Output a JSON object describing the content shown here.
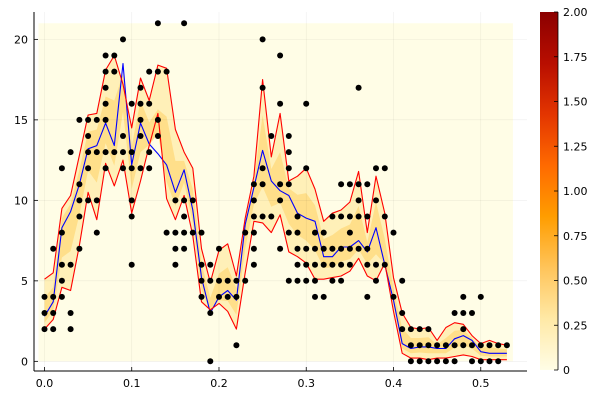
{
  "chart_data": {
    "type": "scatter",
    "title": "",
    "xlabel": "",
    "ylabel": "",
    "xlim": [
      -0.012,
      0.553
    ],
    "ylim": [
      -0.6,
      21.7
    ],
    "grid": true,
    "x_ticks": [
      0.0,
      0.1,
      0.2,
      0.3,
      0.4,
      0.5
    ],
    "x_tick_labels": [
      "0.0",
      "0.1",
      "0.2",
      "0.3",
      "0.4",
      "0.5"
    ],
    "y_ticks": [
      0,
      5,
      10,
      15,
      20
    ],
    "y_tick_labels": [
      "0",
      "5",
      "10",
      "15",
      "20"
    ],
    "colorbar": {
      "min": 0,
      "max": 2,
      "ticks": [
        "0",
        "0.25",
        "0.50",
        "0.75",
        "1.00",
        "1.25",
        "1.50",
        "1.75",
        "2.00"
      ],
      "colors": [
        "#fffde6",
        "#ffe9a6",
        "#ffc45a",
        "#ff9d00",
        "#ff6a00",
        "#e33500",
        "#b80e00",
        "#8b0000"
      ]
    },
    "band_colors": {
      "outer": "#fff0b8",
      "inner": "#ffdf8a",
      "background": "#fffde6"
    },
    "series": [
      {
        "kind": "points",
        "color": "#000000",
        "points": [
          [
            0.0,
            2
          ],
          [
            0.0,
            3
          ],
          [
            0.0,
            4
          ],
          [
            0.01,
            2
          ],
          [
            0.01,
            3
          ],
          [
            0.01,
            4
          ],
          [
            0.01,
            7
          ],
          [
            0.02,
            4
          ],
          [
            0.02,
            5
          ],
          [
            0.02,
            6
          ],
          [
            0.02,
            8
          ],
          [
            0.02,
            12
          ],
          [
            0.03,
            2
          ],
          [
            0.03,
            3
          ],
          [
            0.03,
            6
          ],
          [
            0.03,
            13
          ],
          [
            0.04,
            7
          ],
          [
            0.04,
            9
          ],
          [
            0.04,
            10
          ],
          [
            0.04,
            11
          ],
          [
            0.04,
            15
          ],
          [
            0.05,
            10
          ],
          [
            0.05,
            12
          ],
          [
            0.05,
            13
          ],
          [
            0.05,
            14
          ],
          [
            0.05,
            15
          ],
          [
            0.06,
            8
          ],
          [
            0.06,
            10
          ],
          [
            0.06,
            13
          ],
          [
            0.06,
            15
          ],
          [
            0.07,
            12
          ],
          [
            0.07,
            13
          ],
          [
            0.07,
            15
          ],
          [
            0.07,
            16
          ],
          [
            0.07,
            17
          ],
          [
            0.07,
            18
          ],
          [
            0.07,
            19
          ],
          [
            0.08,
            13
          ],
          [
            0.08,
            18
          ],
          [
            0.08,
            19
          ],
          [
            0.09,
            12
          ],
          [
            0.09,
            13
          ],
          [
            0.09,
            14
          ],
          [
            0.09,
            20
          ],
          [
            0.1,
            6
          ],
          [
            0.1,
            9
          ],
          [
            0.1,
            10
          ],
          [
            0.1,
            12
          ],
          [
            0.1,
            13
          ],
          [
            0.1,
            16
          ],
          [
            0.11,
            12
          ],
          [
            0.11,
            14
          ],
          [
            0.11,
            15
          ],
          [
            0.11,
            16
          ],
          [
            0.11,
            17
          ],
          [
            0.12,
            12
          ],
          [
            0.12,
            13
          ],
          [
            0.12,
            16
          ],
          [
            0.12,
            18
          ],
          [
            0.13,
            14
          ],
          [
            0.13,
            15
          ],
          [
            0.13,
            18
          ],
          [
            0.13,
            21
          ],
          [
            0.14,
            8
          ],
          [
            0.14,
            18
          ],
          [
            0.15,
            6
          ],
          [
            0.15,
            7
          ],
          [
            0.15,
            8
          ],
          [
            0.15,
            10
          ],
          [
            0.16,
            7
          ],
          [
            0.16,
            8
          ],
          [
            0.16,
            9
          ],
          [
            0.16,
            10
          ],
          [
            0.16,
            21
          ],
          [
            0.17,
            8
          ],
          [
            0.17,
            10
          ],
          [
            0.18,
            4
          ],
          [
            0.18,
            5
          ],
          [
            0.18,
            6
          ],
          [
            0.18,
            8
          ],
          [
            0.19,
            0
          ],
          [
            0.19,
            3
          ],
          [
            0.19,
            5
          ],
          [
            0.19,
            6
          ],
          [
            0.2,
            4
          ],
          [
            0.2,
            5
          ],
          [
            0.2,
            7
          ],
          [
            0.21,
            4
          ],
          [
            0.21,
            5
          ],
          [
            0.22,
            1
          ],
          [
            0.22,
            4
          ],
          [
            0.22,
            5
          ],
          [
            0.23,
            5
          ],
          [
            0.23,
            8
          ],
          [
            0.24,
            6
          ],
          [
            0.24,
            7
          ],
          [
            0.24,
            8
          ],
          [
            0.24,
            9
          ],
          [
            0.24,
            10
          ],
          [
            0.24,
            11
          ],
          [
            0.25,
            9
          ],
          [
            0.25,
            11
          ],
          [
            0.25,
            12
          ],
          [
            0.25,
            17
          ],
          [
            0.25,
            20
          ],
          [
            0.26,
            9
          ],
          [
            0.26,
            14
          ],
          [
            0.27,
            7
          ],
          [
            0.27,
            10
          ],
          [
            0.27,
            11
          ],
          [
            0.27,
            16
          ],
          [
            0.27,
            19
          ],
          [
            0.28,
            5
          ],
          [
            0.28,
            8
          ],
          [
            0.28,
            11
          ],
          [
            0.28,
            12
          ],
          [
            0.28,
            13
          ],
          [
            0.28,
            14
          ],
          [
            0.29,
            5
          ],
          [
            0.29,
            6
          ],
          [
            0.29,
            7
          ],
          [
            0.29,
            8
          ],
          [
            0.29,
            9
          ],
          [
            0.3,
            5
          ],
          [
            0.3,
            6
          ],
          [
            0.3,
            7
          ],
          [
            0.3,
            12
          ],
          [
            0.3,
            16
          ],
          [
            0.31,
            4
          ],
          [
            0.31,
            5
          ],
          [
            0.31,
            6
          ],
          [
            0.31,
            7
          ],
          [
            0.31,
            8
          ],
          [
            0.32,
            4
          ],
          [
            0.32,
            6
          ],
          [
            0.32,
            7
          ],
          [
            0.32,
            8
          ],
          [
            0.33,
            5
          ],
          [
            0.33,
            6
          ],
          [
            0.33,
            7
          ],
          [
            0.33,
            9
          ],
          [
            0.34,
            5
          ],
          [
            0.34,
            6
          ],
          [
            0.34,
            7
          ],
          [
            0.34,
            9
          ],
          [
            0.34,
            11
          ],
          [
            0.35,
            6
          ],
          [
            0.35,
            7
          ],
          [
            0.35,
            8
          ],
          [
            0.35,
            9
          ],
          [
            0.35,
            11
          ],
          [
            0.36,
            7
          ],
          [
            0.36,
            9
          ],
          [
            0.36,
            10
          ],
          [
            0.36,
            11
          ],
          [
            0.36,
            17
          ],
          [
            0.37,
            4
          ],
          [
            0.37,
            6
          ],
          [
            0.37,
            7
          ],
          [
            0.37,
            9
          ],
          [
            0.37,
            11
          ],
          [
            0.38,
            5
          ],
          [
            0.38,
            6
          ],
          [
            0.38,
            10
          ],
          [
            0.38,
            12
          ],
          [
            0.39,
            6
          ],
          [
            0.39,
            9
          ],
          [
            0.39,
            12
          ],
          [
            0.4,
            4
          ],
          [
            0.4,
            8
          ],
          [
            0.41,
            2
          ],
          [
            0.41,
            3
          ],
          [
            0.41,
            5
          ],
          [
            0.42,
            0
          ],
          [
            0.42,
            1
          ],
          [
            0.42,
            2
          ],
          [
            0.43,
            0
          ],
          [
            0.43,
            1
          ],
          [
            0.43,
            2
          ],
          [
            0.44,
            0
          ],
          [
            0.44,
            1
          ],
          [
            0.44,
            2
          ],
          [
            0.45,
            0
          ],
          [
            0.45,
            1
          ],
          [
            0.46,
            0
          ],
          [
            0.46,
            1
          ],
          [
            0.47,
            0
          ],
          [
            0.47,
            1
          ],
          [
            0.47,
            3
          ],
          [
            0.48,
            1
          ],
          [
            0.48,
            2
          ],
          [
            0.48,
            3
          ],
          [
            0.48,
            4
          ],
          [
            0.49,
            0
          ],
          [
            0.49,
            1
          ],
          [
            0.49,
            3
          ],
          [
            0.5,
            0
          ],
          [
            0.5,
            1
          ],
          [
            0.5,
            4
          ],
          [
            0.51,
            0
          ],
          [
            0.51,
            1
          ],
          [
            0.52,
            0
          ],
          [
            0.52,
            1
          ],
          [
            0.53,
            1
          ]
        ]
      },
      {
        "kind": "line",
        "color": "#0000ff",
        "x": [
          0.0,
          0.01,
          0.02,
          0.03,
          0.04,
          0.05,
          0.06,
          0.07,
          0.08,
          0.09,
          0.1,
          0.11,
          0.12,
          0.13,
          0.14,
          0.15,
          0.16,
          0.17,
          0.18,
          0.19,
          0.2,
          0.21,
          0.22,
          0.23,
          0.24,
          0.25,
          0.26,
          0.27,
          0.28,
          0.29,
          0.3,
          0.31,
          0.32,
          0.33,
          0.34,
          0.35,
          0.36,
          0.37,
          0.38,
          0.39,
          0.4,
          0.41,
          0.42,
          0.43,
          0.44,
          0.45,
          0.46,
          0.47,
          0.48,
          0.49,
          0.5,
          0.51,
          0.52,
          0.53
        ],
        "y": [
          2.8,
          3.7,
          8.3,
          9.3,
          11,
          13.2,
          13.4,
          14.8,
          13.4,
          18.5,
          12.2,
          14.8,
          13.5,
          12.9,
          12.2,
          10.5,
          11.9,
          9.4,
          5.2,
          3.0,
          4.0,
          4.4,
          3.8,
          8.5,
          10.8,
          13.1,
          11.2,
          10.6,
          10.3,
          9.2,
          8.9,
          8.7,
          6.5,
          6.5,
          7.1,
          7.1,
          7.5,
          6.8,
          8.3,
          6.0,
          3.8,
          1.1,
          0.8,
          0.9,
          0.9,
          0.8,
          0.8,
          1.4,
          1.6,
          1.3,
          0.6,
          0.5,
          0.5,
          0.5
        ]
      },
      {
        "kind": "line",
        "color": "#ff0000",
        "x": [
          0.0,
          0.01,
          0.02,
          0.03,
          0.04,
          0.05,
          0.06,
          0.07,
          0.08,
          0.09,
          0.1,
          0.11,
          0.12,
          0.13,
          0.14,
          0.15,
          0.16,
          0.17,
          0.18,
          0.19,
          0.2,
          0.21,
          0.22,
          0.23,
          0.24,
          0.25,
          0.26,
          0.27,
          0.28,
          0.29,
          0.3,
          0.31,
          0.32,
          0.33,
          0.34,
          0.35,
          0.36,
          0.37,
          0.38,
          0.39,
          0.4,
          0.41,
          0.42,
          0.43,
          0.44,
          0.45,
          0.46,
          0.47,
          0.48,
          0.49,
          0.5,
          0.51,
          0.52,
          0.53
        ],
        "y": [
          5.1,
          5.5,
          9.5,
          10.3,
          12.8,
          15.3,
          15.4,
          18.1,
          19.0,
          17.2,
          14.5,
          17.6,
          16.2,
          18.4,
          18.2,
          14.4,
          13.0,
          12.0,
          7.0,
          4.9,
          6.9,
          7.3,
          5.3,
          8.9,
          11.5,
          17.5,
          12.7,
          15.4,
          11.2,
          11.5,
          12.0,
          10.7,
          8.7,
          9.2,
          9.4,
          9.9,
          11.8,
          8.0,
          11.5,
          9.2,
          5.2,
          3.0,
          2.1,
          2.0,
          2.1,
          1.3,
          2.1,
          2.4,
          2.3,
          1.6,
          1.1,
          1.3,
          1.1,
          1.0
        ]
      },
      {
        "kind": "line",
        "color": "#ff0000",
        "x": [
          0.0,
          0.01,
          0.02,
          0.03,
          0.04,
          0.05,
          0.06,
          0.07,
          0.08,
          0.09,
          0.1,
          0.11,
          0.12,
          0.13,
          0.14,
          0.15,
          0.16,
          0.17,
          0.18,
          0.19,
          0.2,
          0.21,
          0.22,
          0.23,
          0.24,
          0.25,
          0.26,
          0.27,
          0.28,
          0.29,
          0.3,
          0.31,
          0.32,
          0.33,
          0.34,
          0.35,
          0.36,
          0.37,
          0.38,
          0.39,
          0.4,
          0.41,
          0.42,
          0.43,
          0.44,
          0.45,
          0.46,
          0.47,
          0.48,
          0.49,
          0.5,
          0.51,
          0.52,
          0.53
        ],
        "y": [
          2.0,
          2.6,
          4.6,
          4.4,
          7.2,
          10.5,
          8.8,
          12.3,
          10.9,
          12.5,
          9.2,
          11.2,
          13.4,
          15.4,
          10.1,
          8.8,
          10.3,
          7.8,
          3.7,
          3.2,
          3.6,
          3.1,
          2.0,
          5.5,
          8.7,
          8.6,
          8.0,
          9.1,
          6.8,
          6.5,
          6.1,
          5.1,
          5.1,
          5.2,
          5.3,
          5.6,
          6.4,
          5.3,
          5.0,
          6.1,
          3.1,
          0.5,
          0.2,
          0.2,
          0.1,
          0.2,
          0.2,
          0.3,
          0.4,
          0.3,
          0.1,
          0.1,
          0.1,
          0.1
        ]
      }
    ]
  }
}
